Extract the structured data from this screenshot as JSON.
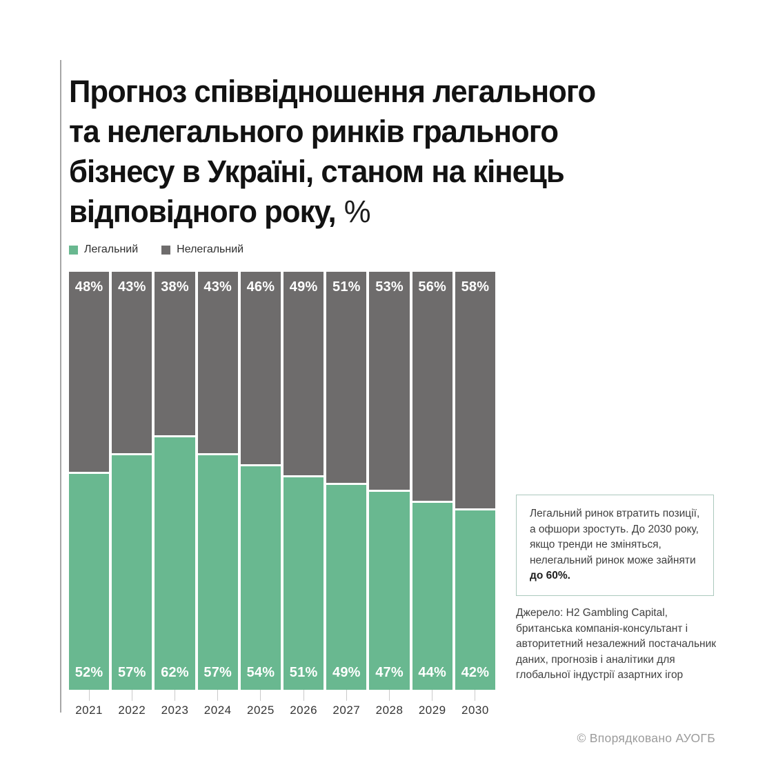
{
  "title": {
    "lines": [
      "Прогноз співвідношення легального",
      "та нелегального ринків грального",
      "бізнесу в Україні, станом на кінець",
      "відповідного року,"
    ],
    "suffix": "%"
  },
  "legend": [
    {
      "label": "Легальний",
      "color": "#69b890"
    },
    {
      "label": "Нелегальний",
      "color": "#6e6c6c"
    }
  ],
  "chart_data": {
    "type": "bar",
    "stacked": true,
    "unit": "%",
    "ylim": [
      0,
      100
    ],
    "grid": false,
    "legend_position": "top-left",
    "categories": [
      "2021",
      "2022",
      "2023",
      "2024",
      "2025",
      "2026",
      "2027",
      "2028",
      "2029",
      "2030"
    ],
    "series": [
      {
        "name": "Легальний",
        "color": "#69b890",
        "position": "bottom",
        "values": [
          52,
          57,
          62,
          57,
          54,
          51,
          49,
          47,
          44,
          42
        ]
      },
      {
        "name": "Нелегальний",
        "color": "#6e6c6c",
        "position": "top",
        "values": [
          48,
          43,
          38,
          43,
          46,
          49,
          51,
          53,
          56,
          58
        ]
      }
    ],
    "value_label_suffix": "%",
    "value_label_color": "#ffffff"
  },
  "note": {
    "text": "Легальний ринок втратить позиції, а офшори зростуть. До 2030 року, якщо тренди не зміняться, нелегальний ринок може зайняти",
    "bold": "до 60%."
  },
  "source": "Джерело: H2 Gambling Capital, британська компанія-консультант і авторитетний незалежний постачальник даних, прогнозів і аналітики для глобальної індустрії азартних ігор",
  "footer": "© Впорядковано АУОГБ",
  "style_colors": {
    "axis_line": "#a6a6a6",
    "tick": "#c9c9c9",
    "note_border": "#abc8bd",
    "footer_text": "#9b9b9b"
  }
}
